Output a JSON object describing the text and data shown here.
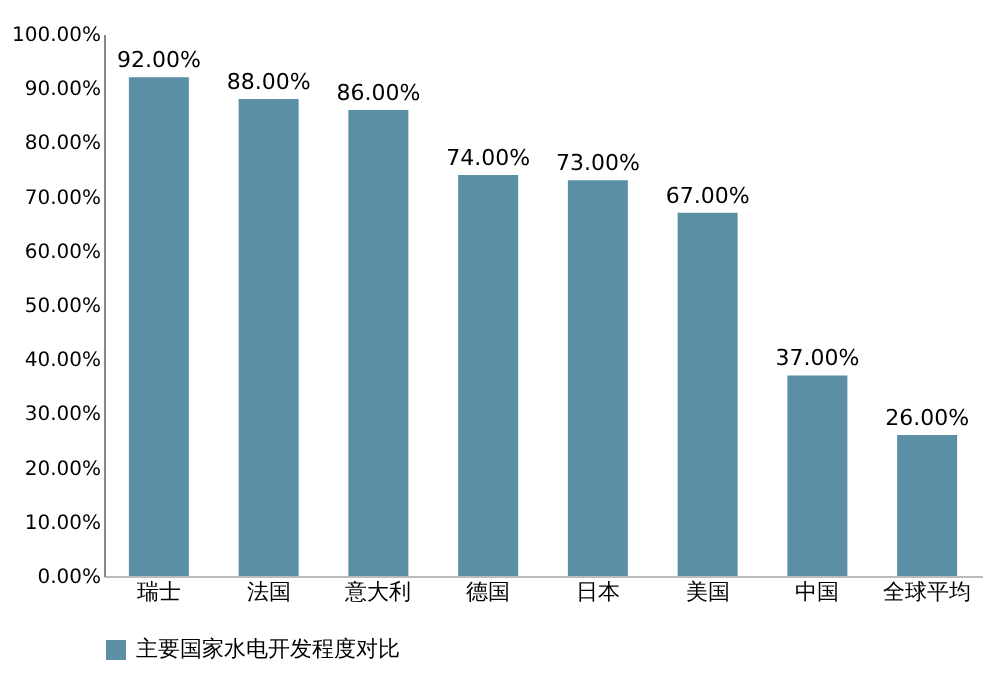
{
  "chart_data": {
    "type": "bar",
    "categories": [
      "瑞士",
      "法国",
      "意大利",
      "德国",
      "日本",
      "美国",
      "中国",
      "全球平均"
    ],
    "series": [
      {
        "name": "主要国家水电开发程度对比",
        "color": "#5b8fa6",
        "values": [
          92,
          88,
          86,
          74,
          73,
          67,
          37,
          26
        ],
        "value_labels": [
          "92.00%",
          "88.00%",
          "86.00%",
          "74.00%",
          "73.00%",
          "67.00%",
          "37.00%",
          "26.00%"
        ]
      }
    ],
    "ylim": [
      0,
      100
    ],
    "yticks": [
      {
        "value": 0,
        "label": "0.00%"
      },
      {
        "value": 10,
        "label": "10.00%"
      },
      {
        "value": 20,
        "label": "20.00%"
      },
      {
        "value": 30,
        "label": "30.00%"
      },
      {
        "value": 40,
        "label": "40.00%"
      },
      {
        "value": 50,
        "label": "50.00%"
      },
      {
        "value": 60,
        "label": "60.00%"
      },
      {
        "value": 70,
        "label": "70.00%"
      },
      {
        "value": 80,
        "label": "80.00%"
      },
      {
        "value": 90,
        "label": "90.00%"
      },
      {
        "value": 100,
        "label": "100.00%"
      }
    ],
    "grid": false,
    "legend": "bottom"
  }
}
